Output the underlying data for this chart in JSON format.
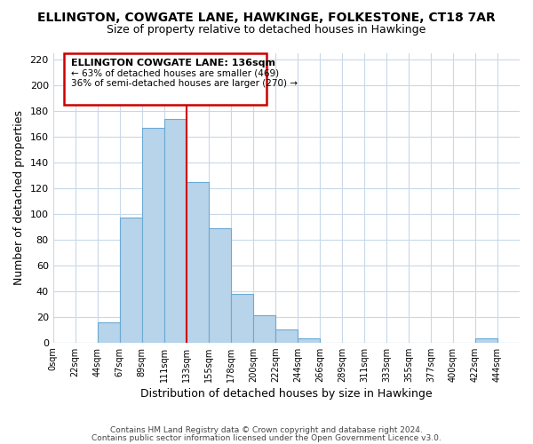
{
  "title": "ELLINGTON, COWGATE LANE, HAWKINGE, FOLKESTONE, CT18 7AR",
  "subtitle": "Size of property relative to detached houses in Hawkinge",
  "xlabel": "Distribution of detached houses by size in Hawkinge",
  "ylabel": "Number of detached properties",
  "bar_color": "#b8d4ea",
  "bar_edge_color": "#6aaad4",
  "tick_labels": [
    "0sqm",
    "22sqm",
    "44sqm",
    "67sqm",
    "89sqm",
    "111sqm",
    "133sqm",
    "155sqm",
    "178sqm",
    "200sqm",
    "222sqm",
    "244sqm",
    "266sqm",
    "289sqm",
    "311sqm",
    "333sqm",
    "355sqm",
    "377sqm",
    "400sqm",
    "422sqm",
    "444sqm"
  ],
  "bar_heights": [
    0,
    0,
    16,
    97,
    167,
    174,
    125,
    89,
    38,
    21,
    10,
    3,
    0,
    0,
    0,
    0,
    0,
    0,
    0,
    3,
    0
  ],
  "ylim": [
    0,
    225
  ],
  "yticks": [
    0,
    20,
    40,
    60,
    80,
    100,
    120,
    140,
    160,
    180,
    200,
    220
  ],
  "annotation_title": "ELLINGTON COWGATE LANE: 136sqm",
  "annotation_line1": "← 63% of detached houses are smaller (469)",
  "annotation_line2": "36% of semi-detached houses are larger (270) →",
  "property_line_x": 6,
  "footer1": "Contains HM Land Registry data © Crown copyright and database right 2024.",
  "footer2": "Contains public sector information licensed under the Open Government Licence v3.0.",
  "background_color": "#ffffff",
  "grid_color": "#c8d8e8"
}
